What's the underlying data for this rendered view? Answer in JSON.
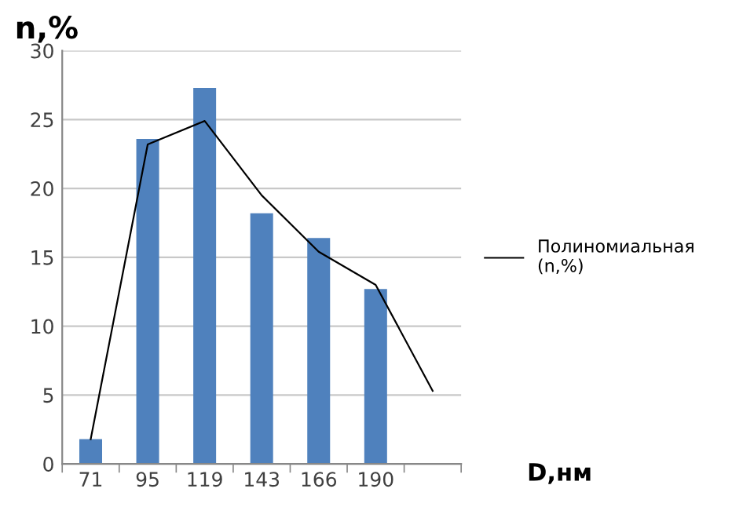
{
  "chart_data": {
    "type": "bar",
    "xlabel": "D,нм",
    "ylabel": "n,%",
    "categories": [
      "71",
      "95",
      "119",
      "143",
      "166",
      "190",
      null
    ],
    "series": [
      {
        "color": "#4f81bd",
        "values": [
          1.8,
          23.6,
          27.3,
          18.2,
          16.4,
          12.7,
          null
        ]
      },
      {
        "type": "line",
        "name": "Полиномиальная\n(n,%)",
        "color": "#000000",
        "values": [
          1.8,
          23.2,
          24.9,
          19.5,
          15.4,
          13.0,
          5.3
        ]
      }
    ],
    "ylim": [
      0,
      30
    ],
    "yticks": [
      0,
      5,
      10,
      15,
      20,
      25,
      30
    ],
    "grid": "y",
    "legend": "right",
    "marker": "none",
    "line_style": "solid"
  }
}
